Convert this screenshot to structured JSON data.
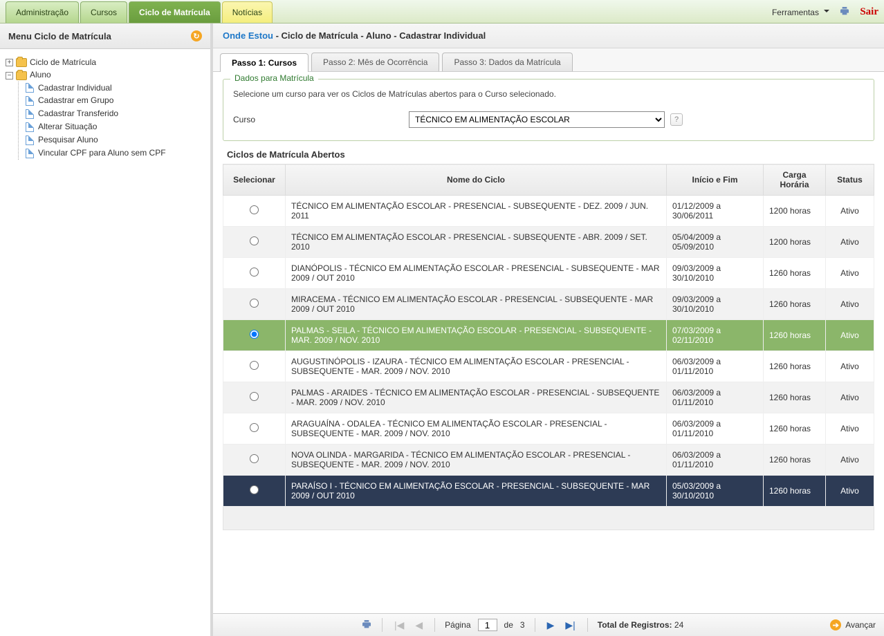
{
  "topnav": {
    "tabs": [
      {
        "label": "Administração",
        "state": "normal"
      },
      {
        "label": "Cursos",
        "state": "normal"
      },
      {
        "label": "Ciclo de Matrícula",
        "state": "active"
      },
      {
        "label": "Notícias",
        "state": "yellow"
      }
    ],
    "ferramentas_label": "Ferramentas",
    "sair_label": "Sair"
  },
  "sidebar": {
    "title": "Menu Ciclo de Matrícula",
    "root": [
      {
        "label": "Ciclo de Matrícula",
        "expanded": false
      },
      {
        "label": "Aluno",
        "expanded": true,
        "children": [
          {
            "label": "Cadastrar Individual"
          },
          {
            "label": "Cadastrar em Grupo"
          },
          {
            "label": "Cadastrar Transferido"
          },
          {
            "label": "Alterar Situação"
          },
          {
            "label": "Pesquisar Aluno"
          },
          {
            "label": "Vincular CPF para Aluno sem CPF"
          }
        ]
      }
    ]
  },
  "breadcrumb": {
    "onde": "Onde Estou",
    "path": " - Ciclo de Matrícula - Aluno - Cadastrar Individual"
  },
  "steps": [
    {
      "label": "Passo 1: Cursos",
      "active": true
    },
    {
      "label": "Passo 2: Mês de Ocorrência",
      "active": false
    },
    {
      "label": "Passo 3: Dados da Matrícula",
      "active": false
    }
  ],
  "fieldset": {
    "legend": "Dados para Matrícula",
    "hint": "Selecione um curso para ver os Ciclos de Matrículas abertos para o Curso selecionado.",
    "curso_label": "Curso",
    "curso_value": "TÉCNICO EM ALIMENTAÇÃO ESCOLAR"
  },
  "grid": {
    "title": "Ciclos de Matrícula Abertos",
    "columns": [
      "Selecionar",
      "Nome do Ciclo",
      "Início e Fim",
      "Carga Horária",
      "Status"
    ],
    "col_widths": [
      "90px",
      "auto",
      "140px",
      "90px",
      "70px"
    ],
    "rows": [
      {
        "sel": false,
        "nome": "TÉCNICO EM ALIMENTAÇÃO ESCOLAR - PRESENCIAL - SUBSEQUENTE - DEZ. 2009 / JUN. 2011",
        "datas": "01/12/2009 a 30/06/2011",
        "carga": "1200 horas",
        "status": "Ativo",
        "rowclass": ""
      },
      {
        "sel": false,
        "nome": "TÉCNICO EM ALIMENTAÇÃO ESCOLAR - PRESENCIAL - SUBSEQUENTE - ABR. 2009 / SET. 2010",
        "datas": "05/04/2009 a 05/09/2010",
        "carga": "1200 horas",
        "status": "Ativo",
        "rowclass": "striped"
      },
      {
        "sel": false,
        "nome": "DIANÓPOLIS - TÉCNICO EM ALIMENTAÇÃO ESCOLAR - PRESENCIAL - SUBSEQUENTE - MAR 2009 / OUT 2010",
        "datas": "09/03/2009 a 30/10/2010",
        "carga": "1260 horas",
        "status": "Ativo",
        "rowclass": ""
      },
      {
        "sel": false,
        "nome": "MIRACEMA - TÉCNICO EM ALIMENTAÇÃO ESCOLAR - PRESENCIAL - SUBSEQUENTE - MAR 2009 / OUT 2010",
        "datas": "09/03/2009 a 30/10/2010",
        "carga": "1260 horas",
        "status": "Ativo",
        "rowclass": "striped"
      },
      {
        "sel": true,
        "nome": "PALMAS - SEILA - TÉCNICO EM ALIMENTAÇÃO ESCOLAR - PRESENCIAL - SUBSEQUENTE - MAR. 2009 / NOV. 2010",
        "datas": "07/03/2009 a 02/11/2010",
        "carga": "1260 horas",
        "status": "Ativo",
        "rowclass": "selected"
      },
      {
        "sel": false,
        "nome": "AUGUSTINÓPOLIS - IZAURA - TÉCNICO EM ALIMENTAÇÃO ESCOLAR - PRESENCIAL - SUBSEQUENTE - MAR. 2009 / NOV. 2010",
        "datas": "06/03/2009 a 01/11/2010",
        "carga": "1260 horas",
        "status": "Ativo",
        "rowclass": ""
      },
      {
        "sel": false,
        "nome": "PALMAS - ARAIDES - TÉCNICO EM ALIMENTAÇÃO ESCOLAR - PRESENCIAL - SUBSEQUENTE - MAR. 2009 / NOV. 2010",
        "datas": "06/03/2009 a 01/11/2010",
        "carga": "1260 horas",
        "status": "Ativo",
        "rowclass": "striped"
      },
      {
        "sel": false,
        "nome": "ARAGUAÍNA - ODALEA - TÉCNICO EM ALIMENTAÇÃO ESCOLAR - PRESENCIAL - SUBSEQUENTE - MAR. 2009 / NOV. 2010",
        "datas": "06/03/2009 a 01/11/2010",
        "carga": "1260 horas",
        "status": "Ativo",
        "rowclass": ""
      },
      {
        "sel": false,
        "nome": "NOVA OLINDA - MARGARIDA - TÉCNICO EM ALIMENTAÇÃO ESCOLAR - PRESENCIAL - SUBSEQUENTE - MAR. 2009 / NOV. 2010",
        "datas": "06/03/2009 a 01/11/2010",
        "carga": "1260 horas",
        "status": "Ativo",
        "rowclass": "striped"
      },
      {
        "sel": false,
        "nome": "PARAÍSO I - TÉCNICO EM ALIMENTAÇÃO ESCOLAR - PRESENCIAL - SUBSEQUENTE - MAR 2009 / OUT 2010",
        "datas": "05/03/2009 a 30/10/2010",
        "carga": "1260 horas",
        "status": "Ativo",
        "rowclass": "dark"
      }
    ]
  },
  "pager": {
    "pagina_label": "Página",
    "de_label": "de",
    "page": "1",
    "total_pages": "3",
    "total_label": "Total de Registros:",
    "total_value": "24",
    "avancar_label": "Avançar"
  },
  "colors": {
    "accent_green": "#6a9d3e",
    "selected_row": "#8bb66a",
    "dark_row": "#2d3b55",
    "link_blue": "#1e78c8",
    "sair_red": "#cc0000"
  }
}
